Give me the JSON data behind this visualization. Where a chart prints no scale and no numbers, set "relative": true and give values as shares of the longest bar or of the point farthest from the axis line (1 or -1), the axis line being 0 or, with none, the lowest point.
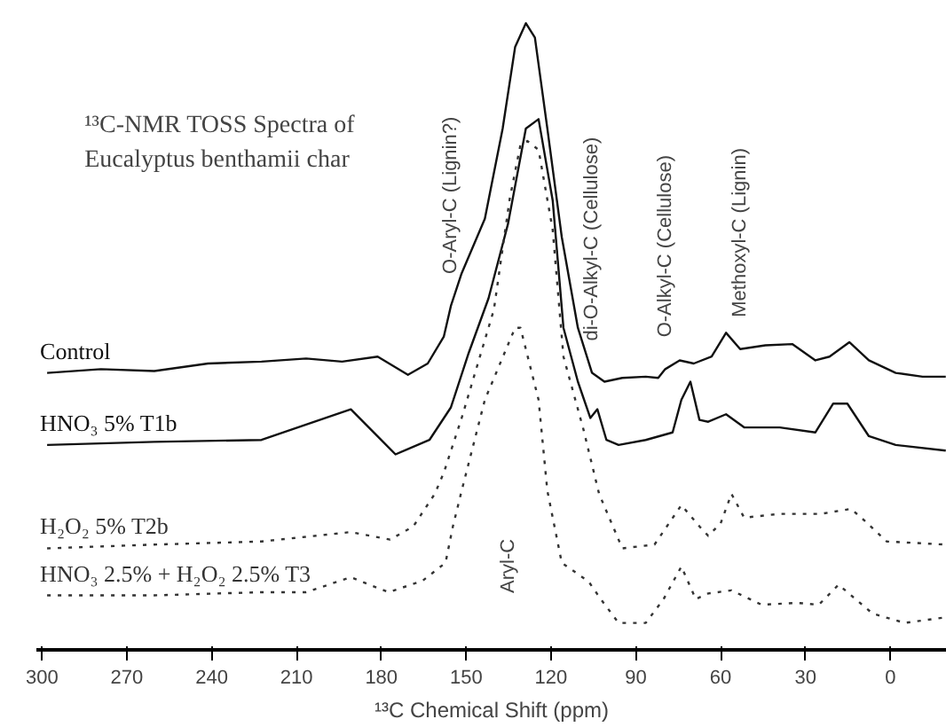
{
  "chart_data": {
    "type": "line",
    "relative": true,
    "title": "¹³C-NMR TOSS Spectra of\nEucalyptus benthamii char",
    "xlabel": "¹³C Chemical Shift (ppm)",
    "xlim": [
      302,
      -20
    ],
    "xticks": [
      300,
      270,
      240,
      210,
      180,
      150,
      120,
      90,
      60,
      30,
      0
    ],
    "grid": false,
    "legend": false,
    "annotations": [
      {
        "text": "O-Aryl-C (Lignin?)",
        "x": 155.4,
        "y": 0.549
      },
      "Aryl-C",
      {
        "text": "di-O-Alkyl-C (Cellulose)",
        "x": 105.5,
        "y": 0.442
      },
      {
        "text": "O-Alkyl-C (Cellulose)",
        "x": 79.6,
        "y": 0.448
      },
      {
        "text": "Methoxyl-C (Lignin)",
        "x": 53.1,
        "y": 0.48
      }
    ],
    "series": [
      {
        "name": "Control",
        "color": "#111111",
        "line_style": "solid",
        "x": [
          298.2,
          279.2,
          260.3,
          241.3,
          222.4,
          206.6,
          193.9,
          181.3,
          170.6,
          163.6,
          157.9,
          155.4,
          151.6,
          143.4,
          137.1,
          132.7,
          128.9,
          125.7,
          121.3,
          116.2,
          110.5,
          105.5,
          101.1,
          94.8,
          86.5,
          82.1,
          79.6,
          74.5,
          69.5,
          63.2,
          58.1,
          53.1,
          44.2,
          34.7,
          26.5,
          21.5,
          14.5,
          7.6,
          -1.9,
          -11.4,
          -19.6
        ],
        "values": [
          0.442,
          0.448,
          0.445,
          0.457,
          0.46,
          0.465,
          0.46,
          0.468,
          0.439,
          0.457,
          0.5,
          0.549,
          0.601,
          0.688,
          0.832,
          0.962,
          1.0,
          0.977,
          0.832,
          0.659,
          0.514,
          0.442,
          0.428,
          0.434,
          0.436,
          0.434,
          0.448,
          0.462,
          0.457,
          0.468,
          0.506,
          0.48,
          0.486,
          0.488,
          0.462,
          0.468,
          0.491,
          0.462,
          0.442,
          0.436,
          0.436
        ]
      },
      {
        "name": "HNO₃ 5% T1b",
        "color": "#111111",
        "line_style": "solid",
        "x": [
          298.2,
          260.3,
          222.4,
          190.8,
          175.0,
          163.0,
          155.4,
          149.1,
          142.1,
          135.2,
          128.9,
          124.4,
          119.4,
          115.6,
          110.5,
          106.1,
          103.6,
          100.4,
          96.1,
          86.5,
          77.0,
          73.9,
          70.7,
          67.5,
          64.4,
          58.1,
          51.7,
          39.1,
          26.5,
          20.2,
          15.2,
          7.6,
          -1.9,
          -19.6
        ],
        "values": [
          0.327,
          0.332,
          0.335,
          0.384,
          0.312,
          0.335,
          0.387,
          0.474,
          0.561,
          0.68,
          0.832,
          0.847,
          0.717,
          0.514,
          0.428,
          0.37,
          0.384,
          0.335,
          0.327,
          0.335,
          0.347,
          0.399,
          0.428,
          0.367,
          0.364,
          0.376,
          0.355,
          0.355,
          0.347,
          0.393,
          0.393,
          0.341,
          0.327,
          0.318
        ]
      },
      {
        "name": "H₂O₂ 5% T2b",
        "color": "#333333",
        "line_style": "dotted",
        "x": [
          298.2,
          260.3,
          222.4,
          190.8,
          176.9,
          168.7,
          161.1,
          157.9,
          151.6,
          140.2,
          134.6,
          130.8,
          128.3,
          124.4,
          119.4,
          115.6,
          108.6,
          103.0,
          94.8,
          83.4,
          73.9,
          67.5,
          64.4,
          60.0,
          56.2,
          51.7,
          39.1,
          24.6,
          13.9,
          8.8,
          1.3,
          -19.6
        ],
        "values": [
          0.162,
          0.168,
          0.173,
          0.188,
          0.176,
          0.197,
          0.249,
          0.283,
          0.37,
          0.543,
          0.72,
          0.806,
          0.812,
          0.798,
          0.67,
          0.468,
          0.353,
          0.249,
          0.162,
          0.168,
          0.231,
          0.197,
          0.182,
          0.202,
          0.249,
          0.211,
          0.217,
          0.217,
          0.225,
          0.205,
          0.173,
          0.168
        ]
      },
      {
        "name": "HNO₃ 2.5% + H₂O₂ 2.5% T3",
        "color": "#333333",
        "line_style": "dotted",
        "x": [
          298.2,
          260.3,
          222.4,
          206.6,
          198.7,
          190.8,
          177.5,
          165.5,
          157.3,
          154.7,
          151.6,
          143.4,
          132.7,
          130.8,
          124.4,
          121.3,
          116.2,
          106.7,
          102.4,
          96.1,
          86.5,
          80.2,
          73.9,
          68.8,
          64.4,
          56.2,
          45.5,
          32.9,
          25.3,
          18.3,
          6.3,
          -5.1,
          -19.6
        ],
        "values": [
          0.087,
          0.087,
          0.092,
          0.092,
          0.104,
          0.116,
          0.092,
          0.11,
          0.139,
          0.197,
          0.254,
          0.399,
          0.514,
          0.514,
          0.399,
          0.254,
          0.139,
          0.109,
          0.081,
          0.043,
          0.043,
          0.081,
          0.133,
          0.081,
          0.09,
          0.095,
          0.072,
          0.075,
          0.072,
          0.104,
          0.058,
          0.043,
          0.052
        ]
      }
    ]
  }
}
